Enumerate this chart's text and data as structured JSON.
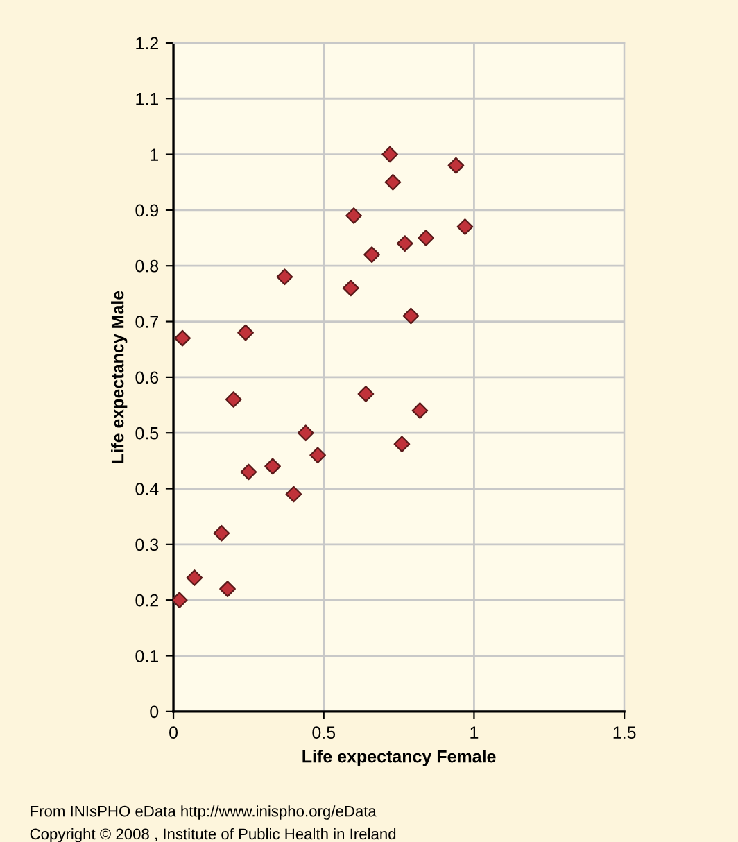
{
  "chart_data": {
    "type": "scatter",
    "xlabel": "Life expectancy Female",
    "ylabel": "Life expectancy Male",
    "x": [
      0.02,
      0.07,
      0.16,
      0.18,
      0.2,
      0.25,
      0.33,
      0.4,
      0.44,
      0.48,
      0.64,
      0.76,
      0.82,
      0.03,
      0.24,
      0.37,
      0.59,
      0.6,
      0.66,
      0.72,
      0.73,
      0.77,
      0.79,
      0.84,
      0.94,
      0.97
    ],
    "values": [
      0.2,
      0.24,
      0.32,
      0.22,
      0.56,
      0.43,
      0.44,
      0.39,
      0.5,
      0.46,
      0.57,
      0.48,
      0.54,
      0.67,
      0.68,
      0.78,
      0.76,
      0.89,
      0.82,
      1.0,
      0.95,
      0.84,
      0.71,
      0.85,
      0.98,
      0.87
    ],
    "color": "#c0323a",
    "marker": "diamond",
    "xlim": [
      0,
      1.5
    ],
    "xticks": [
      0,
      0.5,
      1,
      1.5
    ],
    "ylim": [
      0,
      1.2
    ],
    "yticks": [
      0,
      0.1,
      0.2,
      0.3,
      0.4,
      0.5,
      0.6,
      0.7,
      0.8,
      0.9,
      1,
      1.1,
      1.2
    ],
    "grid": true,
    "legend": false,
    "annotations": [
      "From INIsPHO eData http://www.inispho.org/eData",
      "Copyright © 2008 , Institute of Public Health in Ireland"
    ]
  }
}
